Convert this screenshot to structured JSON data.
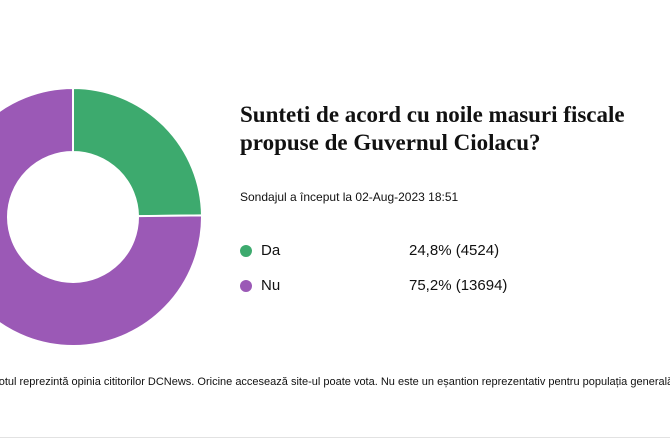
{
  "chart_data": {
    "type": "pie",
    "donut": true,
    "title": "Sunteti de acord cu noile masuri fiscale propuse de Guvernul Ciolacu?",
    "subtitle": "Sondajul a început la 02-Aug-2023 18:51",
    "categories": [
      "Da",
      "Nu"
    ],
    "values": [
      24.8,
      75.2
    ],
    "value_labels": [
      "24,8% (4524)",
      "75,2% (13694)"
    ],
    "colors": [
      "#3daa6e",
      "#9b59b6"
    ],
    "footnote": "Votul reprezintă opinia cititorilor DCNews. Oricine accesează site-ul poate vota. Nu este un eșantion reprezentativ pentru populația generală."
  }
}
